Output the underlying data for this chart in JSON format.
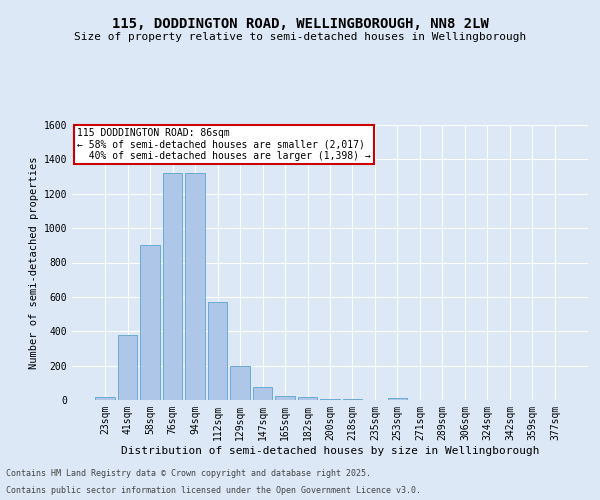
{
  "title": "115, DODDINGTON ROAD, WELLINGBOROUGH, NN8 2LW",
  "subtitle": "Size of property relative to semi-detached houses in Wellingborough",
  "xlabel": "Distribution of semi-detached houses by size in Wellingborough",
  "ylabel": "Number of semi-detached properties",
  "footer1": "Contains HM Land Registry data © Crown copyright and database right 2025.",
  "footer2": "Contains public sector information licensed under the Open Government Licence v3.0.",
  "categories": [
    "23sqm",
    "41sqm",
    "58sqm",
    "76sqm",
    "94sqm",
    "112sqm",
    "129sqm",
    "147sqm",
    "165sqm",
    "182sqm",
    "200sqm",
    "218sqm",
    "235sqm",
    "253sqm",
    "271sqm",
    "289sqm",
    "306sqm",
    "324sqm",
    "342sqm",
    "359sqm",
    "377sqm"
  ],
  "values": [
    15,
    380,
    900,
    1320,
    1320,
    570,
    200,
    75,
    25,
    15,
    5,
    5,
    0,
    10,
    0,
    0,
    0,
    0,
    0,
    0,
    0
  ],
  "bar_color": "#aec6e8",
  "bar_edge_color": "#6aaad4",
  "property_label": "115 DODDINGTON ROAD: 86sqm",
  "pct_smaller": 58,
  "n_smaller": 2017,
  "pct_larger": 40,
  "n_larger": 1398,
  "box_facecolor": "#ffffff",
  "box_edgecolor": "#cc0000",
  "background_color": "#dce8f5",
  "grid_color": "#ffffff",
  "ylim": [
    0,
    1600
  ],
  "yticks": [
    0,
    200,
    400,
    600,
    800,
    1000,
    1200,
    1400,
    1600
  ],
  "title_fontsize": 10,
  "subtitle_fontsize": 8,
  "xlabel_fontsize": 8,
  "ylabel_fontsize": 7.5,
  "tick_fontsize": 7,
  "annotation_fontsize": 7,
  "footer_fontsize": 6
}
